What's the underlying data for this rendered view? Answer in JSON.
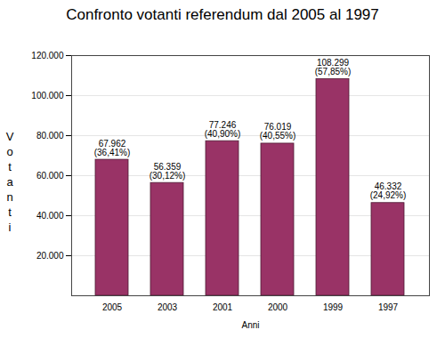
{
  "chart_data": {
    "type": "bar",
    "title": "Confronto votanti referendum dal 2005 al 1997",
    "x_label": "Anni",
    "y_label": "Votanti",
    "categories": [
      "2005",
      "2003",
      "2001",
      "2000",
      "1999",
      "1997"
    ],
    "values": [
      67962,
      56359,
      77246,
      76019,
      108299,
      46332
    ],
    "value_labels": [
      "67.962 (36,41%)",
      "56.359 (30,12%)",
      "77.246 (40,90%)",
      "76.019 (40,55%)",
      "108.299 (57,85%)",
      "46.332 (24,92%)"
    ],
    "data_labels": true,
    "color": "#993366",
    "ylim": [
      0,
      120000
    ],
    "yticks": [
      {
        "value": 20000,
        "label": "20.000"
      },
      {
        "value": 40000,
        "label": "40.000"
      },
      {
        "value": 60000,
        "label": "60.000"
      },
      {
        "value": 80000,
        "label": "80.000"
      },
      {
        "value": 100000,
        "label": "100.000"
      },
      {
        "value": 120000,
        "label": "120.000"
      }
    ],
    "grid": true
  }
}
